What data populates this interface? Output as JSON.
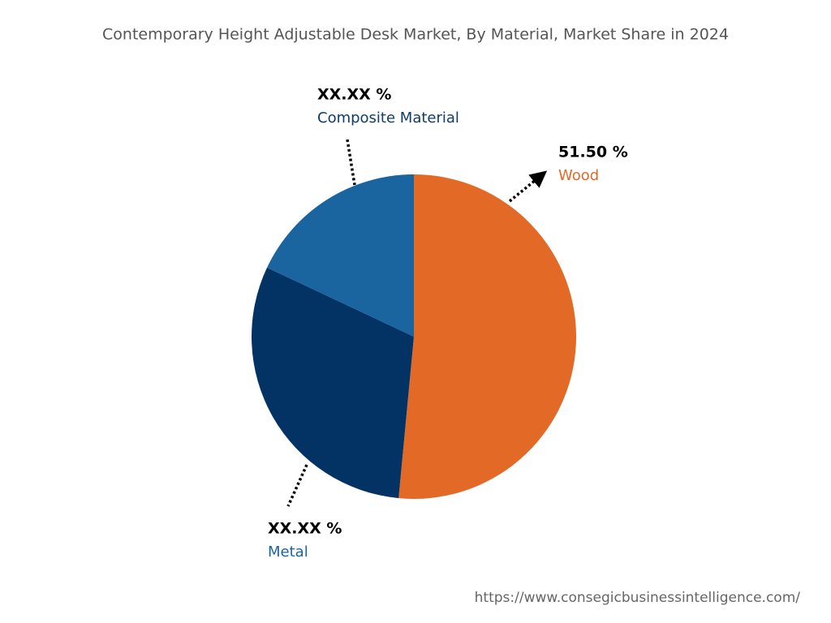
{
  "chart_data": {
    "type": "pie",
    "title": "Contemporary Height Adjustable Desk Market, By Material, Market Share in 2024",
    "categories": [
      "Wood",
      "Metal",
      "Composite Material"
    ],
    "values": [
      51.5,
      30.5,
      18.0
    ],
    "value_labels": [
      "51.50 %",
      "XX.XX %",
      "XX.XX %"
    ],
    "colors": [
      "#e36a26",
      "#033365",
      "#1a64a0"
    ]
  },
  "footer": {
    "url": "https://www.consegicbusinessintelligence.com/"
  }
}
